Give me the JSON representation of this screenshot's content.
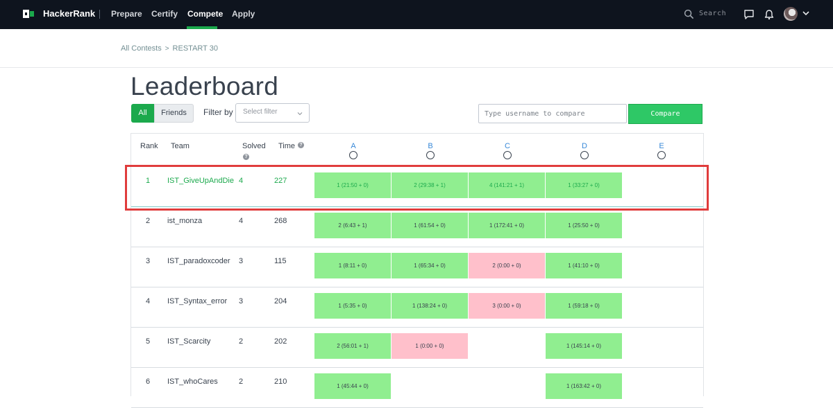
{
  "nav": {
    "brand": "HackerRank",
    "items": [
      "Prepare",
      "Certify",
      "Compete",
      "Apply"
    ],
    "active": "Compete",
    "search_label": "Search"
  },
  "breadcrumb": {
    "parent": "All Contests",
    "sep": ">",
    "current": "RESTART 30"
  },
  "page_title": "Leaderboard",
  "toolbar": {
    "all_label": "All",
    "friends_label": "Friends",
    "filter_label": "Filter by",
    "filter_placeholder": "Select filter",
    "compare_placeholder": "Type username to compare",
    "compare_label": "Compare"
  },
  "colors": {
    "accent": "#1ba94c",
    "accepted": "#90ee90",
    "wrong": "#ffc0cb",
    "highlight_border": "#e03c3c",
    "nav_bg": "#0e141e"
  },
  "table": {
    "headers": {
      "rank": "Rank",
      "team": "Team",
      "solved": "Solved",
      "time": "Time"
    },
    "problems": [
      "A",
      "B",
      "C",
      "D",
      "E"
    ],
    "rows": [
      {
        "rank": "1",
        "team": "IST_GiveUpAndDie",
        "solved": "4",
        "time": "227",
        "subs": [
          {
            "text": "1 (21:50 + 0)",
            "status": "ok"
          },
          {
            "text": "2 (29:38 + 1)",
            "status": "ok"
          },
          {
            "text": "4 (141:21 + 1)",
            "status": "ok"
          },
          {
            "text": "1 (33:27 + 0)",
            "status": "ok"
          },
          {
            "text": "",
            "status": "none"
          }
        ]
      },
      {
        "rank": "2",
        "team": "ist_monza",
        "solved": "4",
        "time": "268",
        "subs": [
          {
            "text": "2 (6:43 + 1)",
            "status": "ok"
          },
          {
            "text": "1 (61:54 + 0)",
            "status": "ok"
          },
          {
            "text": "1 (172:41 + 0)",
            "status": "ok"
          },
          {
            "text": "1 (25:50 + 0)",
            "status": "ok"
          },
          {
            "text": "",
            "status": "none"
          }
        ]
      },
      {
        "rank": "3",
        "team": "IST_paradoxcoder",
        "solved": "3",
        "time": "115",
        "subs": [
          {
            "text": "1 (8:11 + 0)",
            "status": "ok"
          },
          {
            "text": "1 (65:34 + 0)",
            "status": "ok"
          },
          {
            "text": "2 (0:00 + 0)",
            "status": "bad"
          },
          {
            "text": "1 (41:10 + 0)",
            "status": "ok"
          },
          {
            "text": "",
            "status": "none"
          }
        ]
      },
      {
        "rank": "4",
        "team": "IST_Syntax_error",
        "solved": "3",
        "time": "204",
        "subs": [
          {
            "text": "1 (5:35 + 0)",
            "status": "ok"
          },
          {
            "text": "1 (138:24 + 0)",
            "status": "ok"
          },
          {
            "text": "3 (0:00 + 0)",
            "status": "bad"
          },
          {
            "text": "1 (59:18 + 0)",
            "status": "ok"
          },
          {
            "text": "",
            "status": "none"
          }
        ]
      },
      {
        "rank": "5",
        "team": "IST_Scarcity",
        "solved": "2",
        "time": "202",
        "subs": [
          {
            "text": "2 (56:01 + 1)",
            "status": "ok"
          },
          {
            "text": "1 (0:00 + 0)",
            "status": "bad"
          },
          {
            "text": "",
            "status": "none"
          },
          {
            "text": "1 (145:14 + 0)",
            "status": "ok"
          },
          {
            "text": "",
            "status": "none"
          }
        ]
      },
      {
        "rank": "6",
        "team": "IST_whoCares",
        "solved": "2",
        "time": "210",
        "subs": [
          {
            "text": "1 (45:44 + 0)",
            "status": "ok"
          },
          {
            "text": "",
            "status": "none"
          },
          {
            "text": "",
            "status": "none"
          },
          {
            "text": "1 (163:42 + 0)",
            "status": "ok"
          },
          {
            "text": "",
            "status": "none"
          }
        ]
      }
    ]
  }
}
